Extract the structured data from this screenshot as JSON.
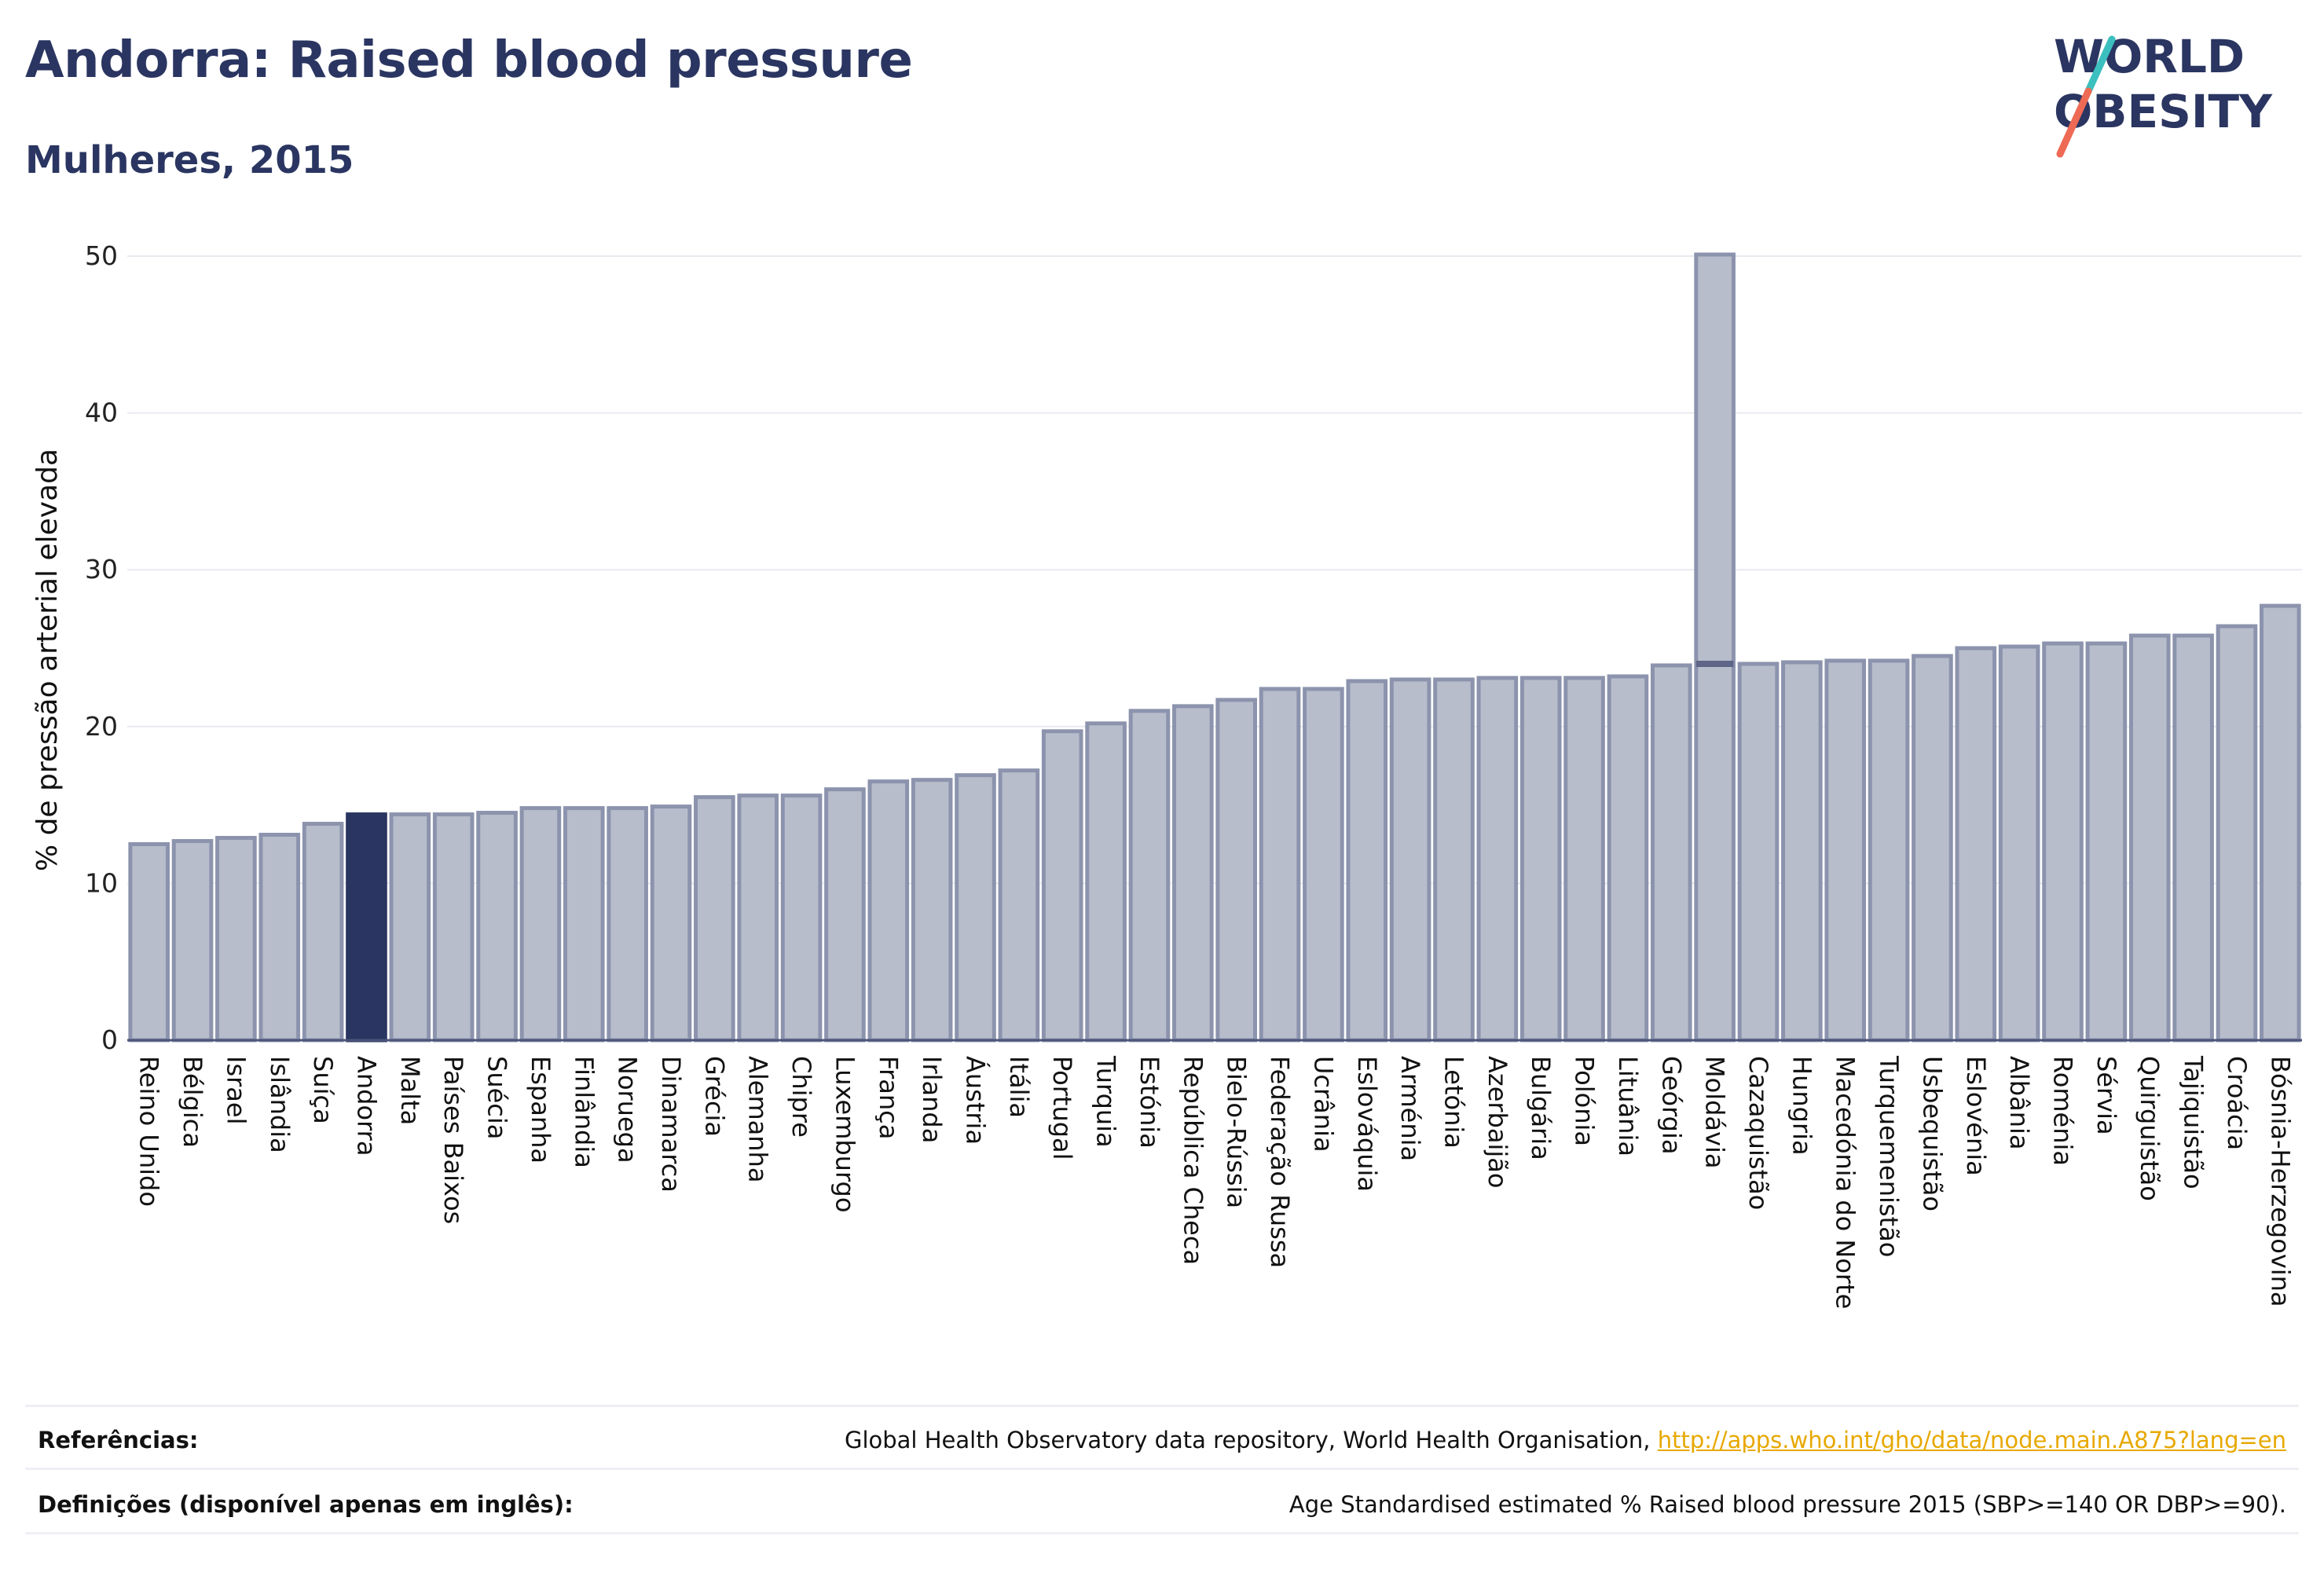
{
  "header": {
    "title": "Andorra: Raised blood pressure",
    "subtitle": "Mulheres, 2015"
  },
  "logo": {
    "line1": "WORLD",
    "line2": "OBESITY"
  },
  "chart_data": {
    "type": "bar",
    "ylabel": "% de pressão arterial elevada",
    "ylim": [
      0,
      50
    ],
    "yticks": [
      0,
      10,
      20,
      30,
      40,
      50
    ],
    "grid": true,
    "highlight": "Andorra",
    "colors": {
      "bar": "#b8bdcc",
      "bar_border": "#8c93ad",
      "highlight": "#2a3561"
    },
    "categories": [
      "Reino Unido",
      "Bélgica",
      "Israel",
      "Islândia",
      "Suíça",
      "Andorra",
      "Malta",
      "Países Baixos",
      "Suécia",
      "Espanha",
      "Finlândia",
      "Noruega",
      "Dinamarca",
      "Grécia",
      "Alemanha",
      "Chipre",
      "Luxemburgo",
      "França",
      "Irlanda",
      "Áustria",
      "Itália",
      "Portugal",
      "Turquia",
      "Estónia",
      "República Checa",
      "Bielo-Rússia",
      "Federação Russa",
      "Ucrânia",
      "Eslováquia",
      "Arménia",
      "Letónia",
      "Azerbaijão",
      "Bulgária",
      "Polónia",
      "Lituânia",
      "Geórgia",
      "Moldávia",
      "Cazaquistão",
      "Hungria",
      "Macedónia do Norte",
      "Turquemenistão",
      "Usbequistão",
      "Eslovénia",
      "Albânia",
      "Roménia",
      "Sérvia",
      "Quirguistão",
      "Tajiquistão",
      "Croácia",
      "Bósnia-Herzegovina"
    ],
    "values": [
      12.5,
      12.7,
      12.9,
      13.1,
      13.8,
      14.4,
      14.4,
      14.4,
      14.5,
      14.8,
      14.8,
      14.8,
      14.9,
      15.5,
      15.6,
      15.6,
      16.0,
      16.5,
      16.6,
      16.9,
      17.2,
      19.7,
      20.2,
      21.0,
      21.3,
      21.7,
      22.4,
      22.4,
      22.9,
      23.0,
      23.0,
      23.1,
      23.1,
      23.1,
      23.2,
      23.9,
      24.0,
      24.0,
      24.1,
      24.2,
      24.2,
      24.5,
      25.0,
      25.1,
      25.3,
      25.3,
      25.8,
      25.8,
      26.4,
      27.7
    ],
    "range_high": {
      "Moldávia": 50.1
    }
  },
  "footer": {
    "references_label": "Referências:",
    "references_text": "Global Health Observatory data repository, World Health Organisation, ",
    "references_link": "http://apps.who.int/gho/data/node.main.A875?lang=en",
    "definitions_label": "Definições (disponível apenas em inglês):",
    "definitions_text": "Age Standardised estimated % Raised blood pressure 2015 (SBP>=140 OR DBP>=90)."
  }
}
